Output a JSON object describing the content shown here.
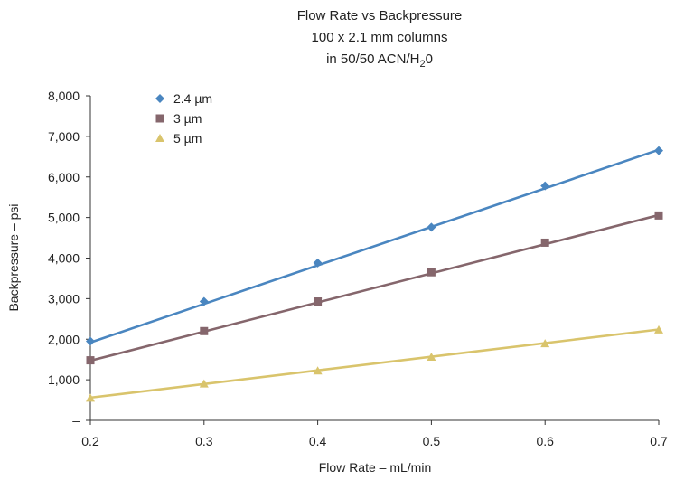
{
  "chart_data": {
    "type": "scatter",
    "title_lines": [
      "Flow Rate vs Backpressure",
      "100 x 2.1 mm columns"
    ],
    "title_line3_main": "in 50/50 ACN/H",
    "title_line3_sub": "2",
    "title_line3_tail": "0",
    "xlabel": "Flow Rate – mL/min",
    "ylabel": "Backpressure – psi",
    "xlim": [
      0.2,
      0.7
    ],
    "ylim": [
      0,
      8000
    ],
    "x_ticks": [
      "0.2",
      "0.3",
      "0.4",
      "0.5",
      "0.6",
      "0.7"
    ],
    "y_ticks": [
      "–",
      "1,000",
      "2,000",
      "3,000",
      "4,000",
      "5,000",
      "6,000",
      "7,000",
      "8,000"
    ],
    "x": [
      0.2,
      0.3,
      0.4,
      0.5,
      0.6,
      0.7
    ],
    "grid": false,
    "legend_position": "top-left",
    "series": [
      {
        "name": "2.4 µm",
        "marker": "diamond",
        "color": "#4a86c0",
        "values": [
          1950,
          2930,
          3880,
          4760,
          5780,
          6650
        ],
        "fit": [
          1920,
          6670
        ]
      },
      {
        "name": "3 µm",
        "marker": "square",
        "color": "#85666c",
        "values": [
          1480,
          2200,
          2930,
          3650,
          4380,
          5050
        ],
        "fit": [
          1470,
          5060
        ]
      },
      {
        "name": "5 µm",
        "marker": "triangle",
        "color": "#d9c46c",
        "values": [
          550,
          900,
          1220,
          1560,
          1890,
          2230
        ],
        "fit": [
          560,
          2240
        ]
      }
    ]
  }
}
